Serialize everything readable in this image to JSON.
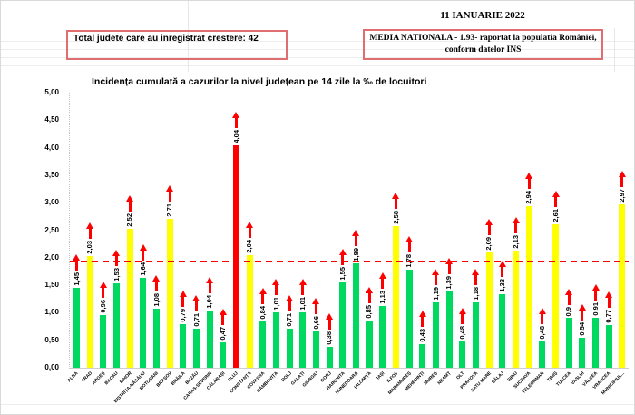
{
  "header": {
    "date": "11 IANUARIE 2022",
    "total_box": "Total judete care au inregistrat crestere: 42",
    "media_line1": "MEDIA NATIONALA - 1.93-  raportat la populatia României,",
    "media_line2": "conform datelor INS"
  },
  "chart_data": {
    "type": "bar",
    "title": "Incidența cumulată a cazurilor la nivel județean pe 14 zile la ‰ de locuitori",
    "xlabel": "",
    "ylabel": "",
    "ylim": [
      0,
      5
    ],
    "y_ticks": [
      "0,00",
      "0,50",
      "1,00",
      "1,50",
      "2,00",
      "2,50",
      "3,00",
      "3,50",
      "4,00",
      "4,50",
      "5,00"
    ],
    "grid": "off",
    "reference_line": {
      "value": 1.93,
      "label": "MEDIA NATIONALA",
      "color": "#ff0000",
      "style": "dashed"
    },
    "increase_arrows": true,
    "categories": [
      "ALBA",
      "ARAD",
      "ARGEȘ",
      "BACĂU",
      "BIHOR",
      "BISTRIȚA-NĂSĂUD",
      "BOTOȘANI",
      "BRAȘOV",
      "BRĂILA",
      "BUZĂU",
      "CARAȘ-SEVERIN",
      "CĂLĂRAȘI",
      "CLUJ",
      "CONSTANȚA",
      "COVASNA",
      "DÂMBOVIȚA",
      "DOLJ",
      "GALAȚI",
      "GIURGIU",
      "GORJ",
      "HARGHITA",
      "HUNEDOARA",
      "IALOMIȚA",
      "IAȘI",
      "ILFOV",
      "MARAMUREȘ",
      "MEHEDINȚI",
      "MUREȘ",
      "NEAMȚ",
      "OLT",
      "PRAHOVA",
      "SATU MARE",
      "SĂLAJ",
      "SIBIU",
      "SUCEAVA",
      "TELEORMAN",
      "TIMIȘ",
      "TULCEA",
      "VASLUI",
      "VÂLCEA",
      "VRANCEA",
      "MUNICIPIUL..."
    ],
    "values": [
      1.45,
      2.03,
      0.96,
      1.53,
      2.52,
      1.64,
      1.08,
      2.71,
      0.79,
      0.71,
      1.04,
      0.47,
      4.04,
      2.04,
      0.84,
      1.01,
      0.71,
      1.01,
      0.66,
      0.38,
      1.55,
      1.89,
      0.85,
      1.13,
      2.58,
      1.78,
      0.43,
      1.19,
      1.39,
      0.48,
      1.18,
      2.09,
      1.33,
      2.13,
      2.94,
      0.48,
      2.61,
      0.9,
      0.54,
      0.91,
      0.77,
      2.97
    ],
    "value_labels": [
      "1,45",
      "2,03",
      "0,96",
      "1,53",
      "2,52",
      "1,64",
      "1,08",
      "2,71",
      "0,79",
      "0,71",
      "1,04",
      "0,47",
      "4,04",
      "2,04",
      "0,84",
      "1,01",
      "0,71",
      "1,01",
      "0,66",
      "0,38",
      "1,55",
      "1,89",
      "0,85",
      "1,13",
      "2,58",
      "1,78",
      "0,43",
      "1,19",
      "1,39",
      "0,48",
      "1,18",
      "2,09",
      "1,33",
      "2,13",
      "2,94",
      "0,48",
      "2,61",
      "0,9",
      "0,54",
      "0,91",
      "0,77",
      "2,97"
    ],
    "bar_colors": [
      "green",
      "yellow",
      "green",
      "green",
      "yellow",
      "green",
      "green",
      "yellow",
      "green",
      "green",
      "green",
      "green",
      "red",
      "yellow",
      "green",
      "green",
      "green",
      "green",
      "green",
      "green",
      "green",
      "green",
      "green",
      "green",
      "yellow",
      "green",
      "green",
      "green",
      "green",
      "green",
      "green",
      "yellow",
      "green",
      "yellow",
      "yellow",
      "green",
      "yellow",
      "green",
      "green",
      "green",
      "green",
      "yellow"
    ],
    "palette": {
      "green": "#00d95f",
      "yellow": "#ffff00",
      "red": "#ff0000"
    }
  }
}
